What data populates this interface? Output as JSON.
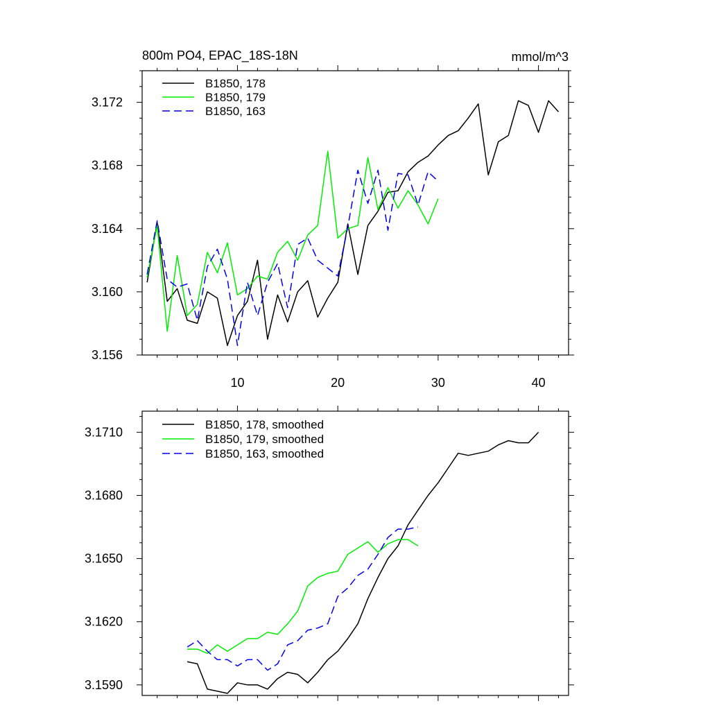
{
  "chart_data": [
    {
      "type": "line",
      "title": "800m PO4, EPAC_18S-18N",
      "units": "mmol/m^3",
      "xlim": [
        0.5,
        43
      ],
      "ylim": [
        3.156,
        3.174
      ],
      "xticks": [
        10,
        20,
        30,
        40
      ],
      "xtick_labels": [
        "10",
        "20",
        "30",
        "40"
      ],
      "yticks": [
        3.156,
        3.16,
        3.164,
        3.168,
        3.172
      ],
      "ytick_labels": [
        "3.156",
        "3.160",
        "3.164",
        "3.168",
        "3.172"
      ],
      "legend_position": "top-left",
      "series": [
        {
          "name": "B1850, 178",
          "color": "#000000",
          "dash": "solid",
          "x_start": 1,
          "values": [
            3.1606,
            3.1644,
            3.1594,
            3.1602,
            3.1582,
            3.158,
            3.16,
            3.1596,
            3.1566,
            3.1585,
            3.1594,
            3.162,
            3.157,
            3.1598,
            3.1581,
            3.16,
            3.1607,
            3.1584,
            3.1596,
            3.1606,
            3.1643,
            3.1611,
            3.1642,
            3.1651,
            3.1663,
            3.1664,
            3.1676,
            3.1682,
            3.1686,
            3.1693,
            3.1699,
            3.1702,
            3.171,
            3.1719,
            3.1674,
            3.1695,
            3.1699,
            3.1721,
            3.1718,
            3.1701,
            3.1721,
            3.1714
          ]
        },
        {
          "name": "B1850, 179",
          "color": "#00ee00",
          "dash": "solid",
          "x_start": 1,
          "values": [
            3.1609,
            3.1642,
            3.1575,
            3.1623,
            3.1585,
            3.1592,
            3.1625,
            3.1612,
            3.1631,
            3.1598,
            3.1602,
            3.161,
            3.1608,
            3.1625,
            3.1632,
            3.162,
            3.1636,
            3.1642,
            3.1689,
            3.1634,
            3.164,
            3.1642,
            3.1685,
            3.1652,
            3.1666,
            3.1653,
            3.1664,
            3.1655,
            3.1643,
            3.1659
          ]
        },
        {
          "name": "B1850, 163",
          "color": "#0000ee",
          "dash": "dashed",
          "x_start": 1,
          "values": [
            3.1611,
            3.1645,
            3.1608,
            3.1603,
            3.1605,
            3.1582,
            3.1616,
            3.1627,
            3.1608,
            3.1566,
            3.1606,
            3.1585,
            3.1606,
            3.1618,
            3.159,
            3.163,
            3.1634,
            3.162,
            3.1615,
            3.161,
            3.1641,
            3.1677,
            3.1656,
            3.1677,
            3.1639,
            3.1675,
            3.1674,
            3.1655,
            3.1676,
            3.167
          ]
        }
      ]
    },
    {
      "type": "line",
      "title": "",
      "units": "",
      "xlim": [
        0.5,
        43
      ],
      "ylim": [
        3.1585,
        3.172
      ],
      "xticks": [
        10,
        20,
        30,
        40
      ],
      "xtick_labels": [],
      "yticks": [
        3.159,
        3.162,
        3.165,
        3.168,
        3.171
      ],
      "ytick_labels": [
        "3.1590",
        "3.1620",
        "3.1650",
        "3.1680",
        "3.1710"
      ],
      "legend_position": "top-left",
      "series": [
        {
          "name": "B1850, 178, smoothed",
          "color": "#000000",
          "dash": "solid",
          "x_start": 5,
          "values": [
            3.1601,
            3.16,
            3.1588,
            3.1587,
            3.1586,
            3.1591,
            3.159,
            3.159,
            3.1588,
            3.1593,
            3.1596,
            3.1595,
            3.1591,
            3.1596,
            3.1602,
            3.1606,
            3.1612,
            3.1619,
            3.1631,
            3.1641,
            3.165,
            3.1656,
            3.1666,
            3.1673,
            3.168,
            3.1686,
            3.1693,
            3.17,
            3.1699,
            3.17,
            3.1701,
            3.1704,
            3.1706,
            3.1705,
            3.1705,
            3.171
          ]
        },
        {
          "name": "B1850, 179, smoothed",
          "color": "#00ee00",
          "dash": "solid",
          "x_start": 5,
          "values": [
            3.1607,
            3.1607,
            3.1605,
            3.1609,
            3.1606,
            3.1609,
            3.1612,
            3.1612,
            3.1615,
            3.1614,
            3.1619,
            3.1625,
            3.1637,
            3.1641,
            3.1643,
            3.1644,
            3.1652,
            3.1655,
            3.1658,
            3.1653,
            3.1657,
            3.1659,
            3.1659,
            3.1656
          ]
        },
        {
          "name": "B1850, 163, smoothed",
          "color": "#0000ee",
          "dash": "dashed",
          "x_start": 5,
          "values": [
            3.1608,
            3.1611,
            3.1606,
            3.1602,
            3.1602,
            3.1599,
            3.1602,
            3.1602,
            3.1597,
            3.16,
            3.1609,
            3.1611,
            3.1616,
            3.1617,
            3.1619,
            3.1632,
            3.1636,
            3.1642,
            3.1645,
            3.1652,
            3.166,
            3.1664,
            3.1664,
            3.1665
          ]
        }
      ]
    }
  ]
}
